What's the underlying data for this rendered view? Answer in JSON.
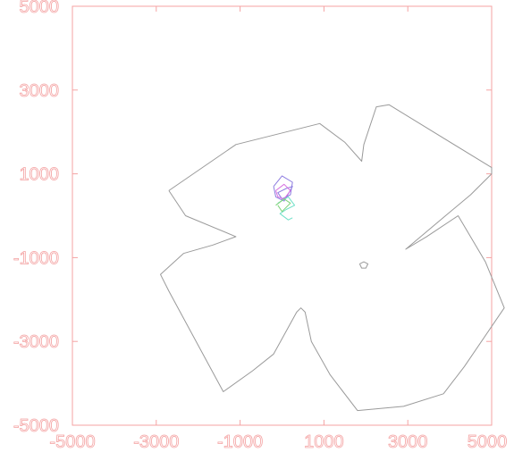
{
  "chart_data": {
    "type": "line",
    "title": "",
    "xlabel": "",
    "ylabel": "",
    "xlim": [
      -5000,
      5000
    ],
    "ylim": [
      -5000,
      5000
    ],
    "grid": false,
    "x_ticks": [
      -5000,
      -3000,
      -1000,
      1000,
      3000,
      5000
    ],
    "y_ticks": [
      5000,
      3000,
      1000,
      -1000,
      -3000,
      -5000
    ],
    "x_tick_labels": [
      "-5000",
      "-3000",
      "-1000",
      "1000",
      "3000",
      "5000"
    ],
    "y_tick_labels": [
      "5000",
      "3000",
      "1000",
      "-1000",
      "-3000",
      "-5000"
    ],
    "axis_color": "#f4a3a3",
    "series": [
      {
        "color": "#9a9a9a",
        "x": [
          -2700,
          -1100,
          900,
          1500,
          1900,
          1950,
          2250,
          2550,
          5000,
          5000,
          4500,
          3900,
          2950,
          3450,
          4200,
          4850,
          5300,
          4350,
          3850,
          2900,
          1800,
          1150,
          700,
          550,
          450,
          350,
          -200,
          -700,
          -1400,
          -2700,
          -2900,
          -2350,
          -1650,
          -1100,
          -2300,
          -2700
        ],
        "y": [
          600,
          1700,
          2200,
          1750,
          1300,
          1700,
          2600,
          2650,
          1150,
          1000,
          500,
          0,
          -800,
          -500,
          0,
          -1100,
          -2200,
          -3600,
          -4250,
          -4550,
          -4650,
          -3800,
          -3000,
          -2300,
          -2200,
          -2300,
          -3300,
          -3700,
          -4200,
          -1800,
          -1400,
          -900,
          -700,
          -500,
          0,
          600
        ]
      },
      {
        "color": "#9a9a9a",
        "x": [
          1850,
          1950,
          2050,
          2000,
          1900,
          1850
        ],
        "y": [
          -1150,
          -1100,
          -1150,
          -1250,
          -1250,
          -1150
        ]
      },
      {
        "color": "#8d7ce0",
        "x": [
          -200,
          0,
          250,
          200,
          0,
          -100,
          100,
          250,
          50,
          -150,
          -200
        ],
        "y": [
          700,
          950,
          800,
          500,
          400,
          550,
          650,
          700,
          350,
          450,
          700
        ]
      },
      {
        "color": "#d76fe0",
        "x": [
          -150,
          50,
          200,
          50,
          -100,
          -150
        ],
        "y": [
          600,
          750,
          600,
          400,
          450,
          600
        ]
      },
      {
        "color": "#6fe0c8",
        "x": [
          -100,
          150,
          300,
          100,
          -50,
          150,
          250
        ],
        "y": [
          300,
          450,
          250,
          150,
          50,
          -100,
          -50
        ]
      },
      {
        "color": "#7ed37a",
        "x": [
          -150,
          50,
          200,
          0,
          -100
        ],
        "y": [
          250,
          400,
          300,
          100,
          250
        ]
      }
    ]
  }
}
